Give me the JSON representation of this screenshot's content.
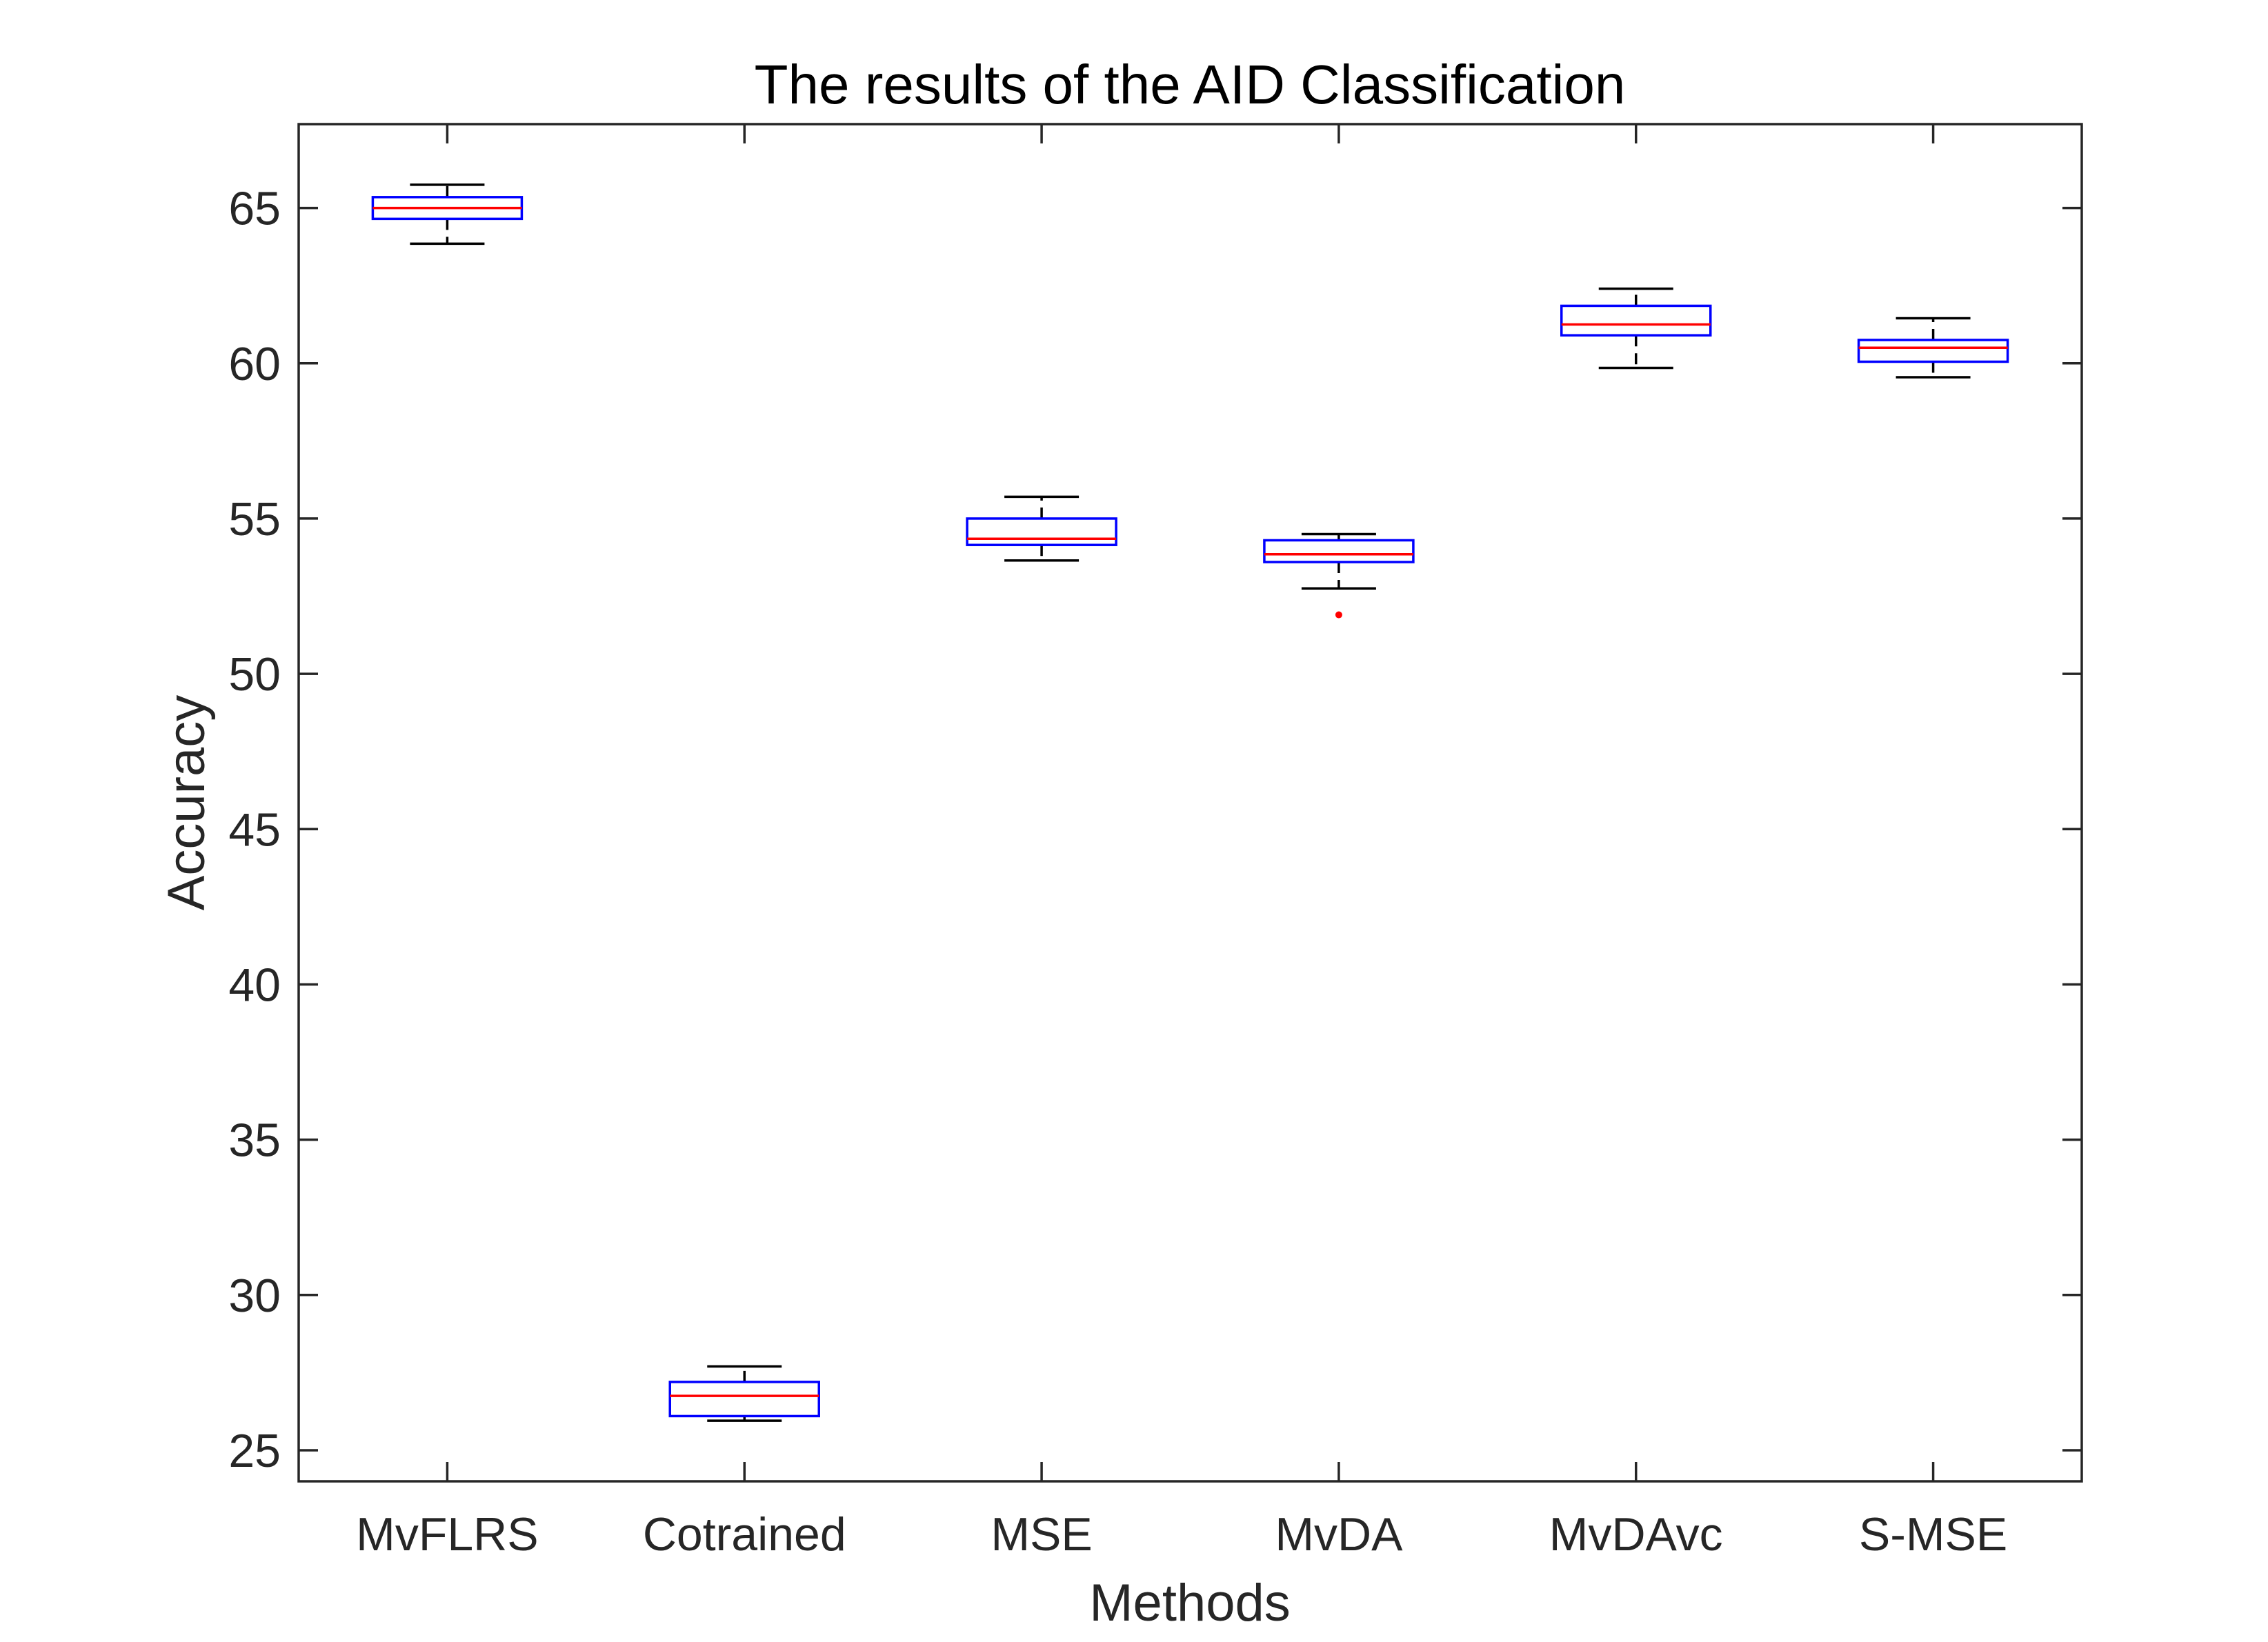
{
  "chart_data": {
    "type": "box",
    "title": "The results of the AID Classification",
    "xlabel": "Methods",
    "ylabel": "Accuracy",
    "ylim": [
      24,
      67.7
    ],
    "yticks": [
      25,
      30,
      35,
      40,
      45,
      50,
      55,
      60,
      65
    ],
    "grid": false,
    "categories": [
      "MvFLRS",
      "Cotrained",
      "MSE",
      "MvDA",
      "MvDAvc",
      "S-MSE"
    ],
    "boxes": [
      {
        "category": "MvFLRS",
        "whisker_low": 63.85,
        "q1": 64.65,
        "median": 65.0,
        "q3": 65.35,
        "whisker_high": 65.75,
        "outliers": []
      },
      {
        "category": "Cotrained",
        "whisker_low": 25.95,
        "q1": 26.1,
        "median": 26.75,
        "q3": 27.2,
        "whisker_high": 27.7,
        "outliers": []
      },
      {
        "category": "MSE",
        "whisker_low": 53.65,
        "q1": 54.15,
        "median": 54.35,
        "q3": 55.0,
        "whisker_high": 55.7,
        "outliers": []
      },
      {
        "category": "MvDA",
        "whisker_low": 52.75,
        "q1": 53.6,
        "median": 53.85,
        "q3": 54.3,
        "whisker_high": 54.5,
        "outliers": [
          51.9
        ]
      },
      {
        "category": "MvDAvc",
        "whisker_low": 59.85,
        "q1": 60.9,
        "median": 61.25,
        "q3": 61.85,
        "whisker_high": 62.4,
        "outliers": []
      },
      {
        "category": "S-MSE",
        "whisker_low": 59.55,
        "q1": 60.05,
        "median": 60.5,
        "q3": 60.75,
        "whisker_high": 61.45,
        "outliers": []
      }
    ],
    "colors": {
      "box": "#0000ff",
      "median": "#ff0000",
      "whisker": "#000000",
      "outlier": "#ff0000",
      "axes": "#262626"
    }
  }
}
